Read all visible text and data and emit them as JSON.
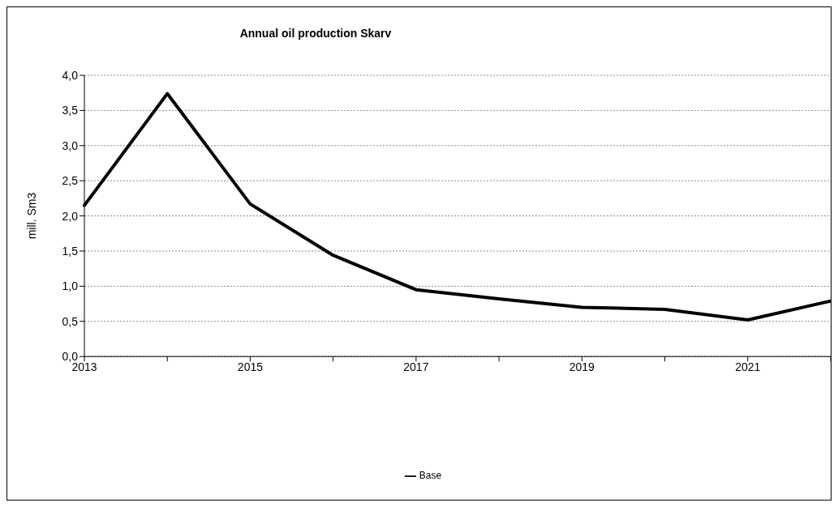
{
  "chart_data": {
    "type": "line",
    "title": "Annual oil production Skarv",
    "ylabel": "mill. Sm3",
    "categories": [
      "2013",
      null,
      "2015",
      null,
      "2017",
      null,
      "2019",
      null,
      "2021",
      null
    ],
    "series": [
      {
        "name": "Base",
        "color": "#000000",
        "values": [
          2.15,
          3.74,
          2.17,
          1.44,
          0.95,
          0.82,
          0.7,
          0.67,
          0.52,
          0.79
        ]
      }
    ],
    "ylim": [
      0,
      4
    ],
    "yticks": [
      {
        "value": 0,
        "label": "0,0"
      },
      {
        "value": 0.5,
        "label": "0,5"
      },
      {
        "value": 1,
        "label": "1,0"
      },
      {
        "value": 1.5,
        "label": "1,5"
      },
      {
        "value": 2,
        "label": "2,0"
      },
      {
        "value": 2.5,
        "label": "2,5"
      },
      {
        "value": 3,
        "label": "3,0"
      },
      {
        "value": 3.5,
        "label": "3,5"
      },
      {
        "value": 4,
        "label": "4,0"
      }
    ],
    "grid": "y",
    "legend": "bottom",
    "marker": "none",
    "line_style": "solid"
  }
}
